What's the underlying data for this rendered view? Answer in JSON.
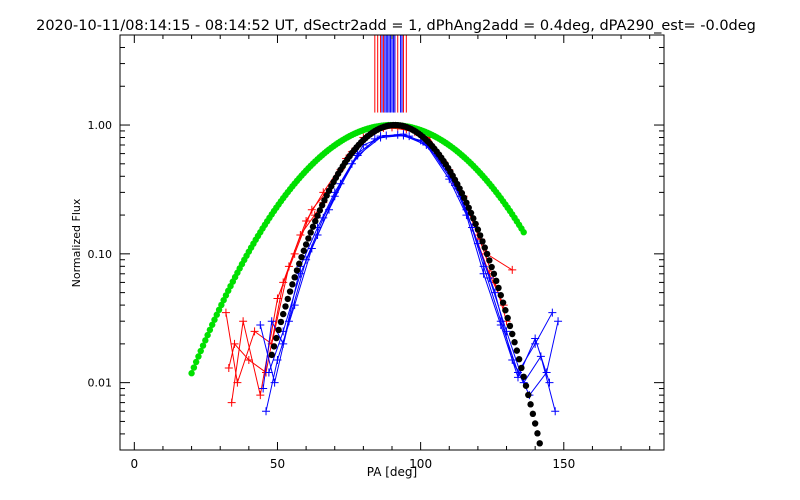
{
  "chart_data": {
    "type": "line",
    "title": "2020-10-11/08:14:15 - 08:14:52 UT, dSectr2add = 1, dPhAng2add = 0.4deg, dPA290_est= -0.0deg",
    "xlabel": "PA [deg]",
    "ylabel": "Normalized Flux",
    "xlim": [
      -5,
      185
    ],
    "ylim": [
      0.003,
      5.0
    ],
    "y_scale": "log",
    "x_ticks": [
      0,
      50,
      100,
      150
    ],
    "x_tick_labels": [
      "0",
      "50",
      "100",
      "150"
    ],
    "y_ticks": [
      0.01,
      0.1,
      1.0
    ],
    "y_tick_labels": [
      "0.01",
      "0.10",
      "1.00"
    ],
    "grid": false,
    "colors": {
      "red": "#ff0000",
      "blue": "#0000ff",
      "green": "#00e000",
      "black": "#000000"
    },
    "series": [
      {
        "color": "red",
        "marker": "+",
        "x": [
          33,
          35,
          40,
          46,
          52,
          58,
          63,
          66,
          72,
          80,
          87,
          95,
          103,
          110,
          115,
          119,
          121,
          123,
          132
        ],
        "y": [
          0.013,
          0.02,
          0.015,
          0.012,
          0.06,
          0.14,
          0.2,
          0.25,
          0.45,
          0.8,
          0.95,
          0.93,
          0.8,
          0.45,
          0.28,
          0.17,
          0.13,
          0.1,
          0.075
        ]
      },
      {
        "color": "red",
        "marker": "+",
        "x": [
          34,
          38,
          44,
          50,
          56,
          62,
          68,
          76,
          84,
          92,
          100,
          108,
          114,
          120,
          126,
          130
        ],
        "y": [
          0.007,
          0.03,
          0.008,
          0.045,
          0.1,
          0.22,
          0.32,
          0.62,
          0.9,
          0.97,
          0.85,
          0.52,
          0.3,
          0.14,
          0.06,
          0.03
        ]
      },
      {
        "color": "red",
        "marker": "+",
        "x": [
          32,
          36,
          42,
          48,
          54,
          60,
          66,
          74,
          82,
          90,
          98,
          106,
          112,
          118,
          124,
          129
        ],
        "y": [
          0.035,
          0.01,
          0.025,
          0.02,
          0.08,
          0.18,
          0.3,
          0.55,
          0.85,
          0.96,
          0.88,
          0.6,
          0.35,
          0.16,
          0.07,
          0.04
        ]
      },
      {
        "color": "blue",
        "marker": "+",
        "x": [
          45,
          48,
          52,
          58,
          64,
          70,
          78,
          86,
          94,
          102,
          110,
          116,
          122,
          128,
          134,
          140,
          146
        ],
        "y": [
          0.009,
          0.03,
          0.02,
          0.08,
          0.16,
          0.3,
          0.6,
          0.82,
          0.85,
          0.72,
          0.4,
          0.22,
          0.08,
          0.03,
          0.012,
          0.02,
          0.035
        ]
      },
      {
        "color": "blue",
        "marker": "+",
        "x": [
          46,
          50,
          56,
          62,
          68,
          76,
          84,
          92,
          100,
          108,
          114,
          120,
          126,
          132,
          138,
          144,
          148
        ],
        "y": [
          0.006,
          0.015,
          0.04,
          0.11,
          0.22,
          0.5,
          0.78,
          0.84,
          0.76,
          0.5,
          0.28,
          0.12,
          0.05,
          0.015,
          0.008,
          0.012,
          0.03
        ]
      },
      {
        "color": "blue",
        "marker": "+",
        "x": [
          44,
          49,
          54,
          60,
          66,
          72,
          80,
          88,
          96,
          104,
          112,
          118,
          124,
          130,
          136,
          142,
          147
        ],
        "y": [
          0.028,
          0.01,
          0.03,
          0.09,
          0.19,
          0.35,
          0.7,
          0.83,
          0.82,
          0.65,
          0.34,
          0.16,
          0.065,
          0.025,
          0.01,
          0.016,
          0.006
        ]
      },
      {
        "color": "blue",
        "marker": "+",
        "x": [
          47,
          52,
          58,
          64,
          70,
          78,
          86,
          94,
          102,
          110,
          116,
          122,
          128,
          134,
          140,
          145
        ],
        "y": [
          0.012,
          0.025,
          0.07,
          0.14,
          0.28,
          0.58,
          0.8,
          0.83,
          0.7,
          0.38,
          0.2,
          0.07,
          0.028,
          0.011,
          0.022,
          0.01
        ]
      },
      {
        "color": "green",
        "marker": "dot",
        "model": {
          "type": "gaussian",
          "center": 90,
          "sigma": 23.5,
          "amplitude": 1.0
        },
        "x_range": [
          20,
          136
        ]
      },
      {
        "color": "black",
        "marker": "dot",
        "model": {
          "type": "gaussian",
          "center": 91,
          "sigma": 15.0,
          "amplitude": 1.0
        },
        "x_range": [
          48,
          145
        ]
      }
    ],
    "overflow_lines": {
      "red_x": [
        84,
        85,
        86,
        87,
        91,
        92,
        94,
        95
      ],
      "blue_x": [
        86.5,
        87.5,
        88,
        88.5,
        89,
        89.5,
        90,
        90.5,
        91,
        93,
        93.5
      ]
    }
  }
}
